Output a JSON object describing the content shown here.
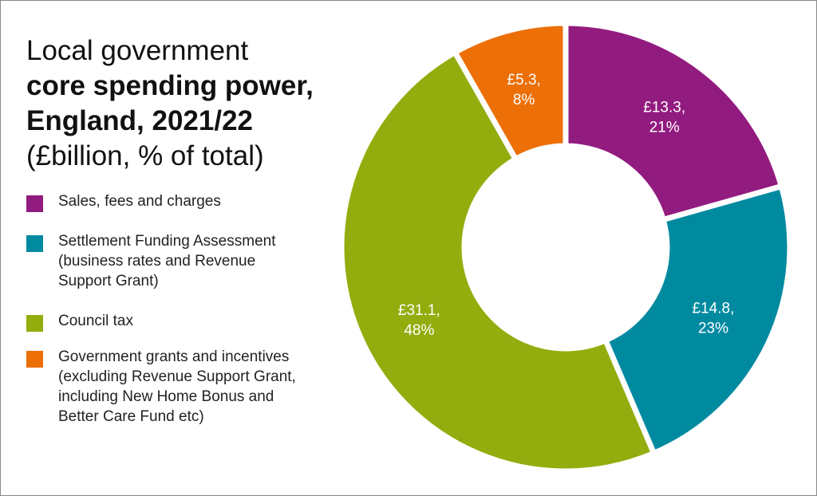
{
  "title": {
    "line1": "Local government",
    "line2": "core spending power,",
    "line3": "England, 2021/22",
    "line4": "(£billion, % of total)"
  },
  "chart_data": {
    "type": "pie",
    "variant": "donut",
    "title": "Local government core spending power, England, 2021/22 (£billion, % of total)",
    "unit": "£billion",
    "legend_position": "left",
    "categories": [
      "Sales, fees and charges",
      "Settlement Funding Assessment (business rates and Revenue Support Grant)",
      "Council tax",
      "Government grants and incentives (excluding Revenue Support Grant, including New Home Bonus and Better Care Fund etc)"
    ],
    "legend_labels": [
      "Sales, fees and charges",
      "Settlement Funding Assessment\n(business rates and Revenue\nSupport Grant)",
      "Council tax",
      "Government grants and incentives\n(excluding Revenue Support Grant,\nincluding New Home Bonus and\nBetter Care Fund etc)"
    ],
    "values": [
      13.3,
      14.8,
      31.1,
      5.3
    ],
    "percentages": [
      21,
      23,
      48,
      8
    ],
    "data_labels": [
      [
        "£13.3,",
        "21%"
      ],
      [
        "£14.8,",
        "23%"
      ],
      [
        "£31.1,",
        "48%"
      ],
      [
        "£5.3,",
        "8%"
      ]
    ],
    "colors": [
      "#921b7f",
      "#008aa0",
      "#93ad0e",
      "#ec6f07"
    ],
    "start_angle_deg": 0,
    "direction": "clockwise"
  }
}
